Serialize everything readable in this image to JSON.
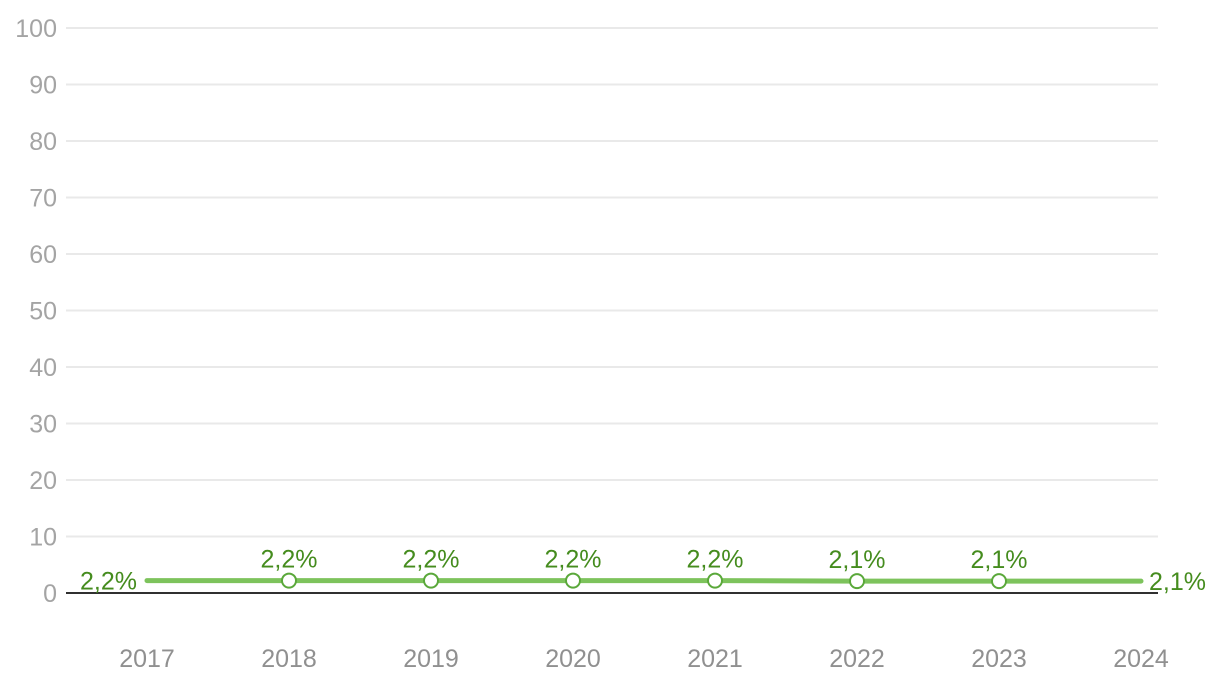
{
  "chart_data": {
    "type": "line",
    "title": "",
    "xlabel": "",
    "ylabel": "",
    "categories": [
      "2017",
      "2018",
      "2019",
      "2020",
      "2021",
      "2022",
      "2023",
      "2024"
    ],
    "series": [
      {
        "name": "percentage-series",
        "values": [
          2.2,
          2.2,
          2.2,
          2.2,
          2.2,
          2.1,
          2.1,
          2.1
        ],
        "point_labels": [
          "2,2%",
          "2,2%",
          "2,2%",
          "2,2%",
          "2,2%",
          "2,1%",
          "2,1%",
          "2,1%"
        ]
      }
    ],
    "yticks": [
      0,
      10,
      20,
      30,
      40,
      50,
      60,
      70,
      80,
      90,
      100
    ],
    "ylim": [
      0,
      100
    ],
    "grid": true,
    "legend_position": "none",
    "colors": {
      "line": "#7dc35c",
      "marker_stroke": "#5aa83a",
      "marker_fill": "#ffffff",
      "data_label": "#458c1e",
      "y_tick_label": "#a4a4a4",
      "x_tick_label": "#909090",
      "gridline": "#e9e9e9",
      "axis_line": "#303030",
      "background": "#ffffff"
    }
  }
}
